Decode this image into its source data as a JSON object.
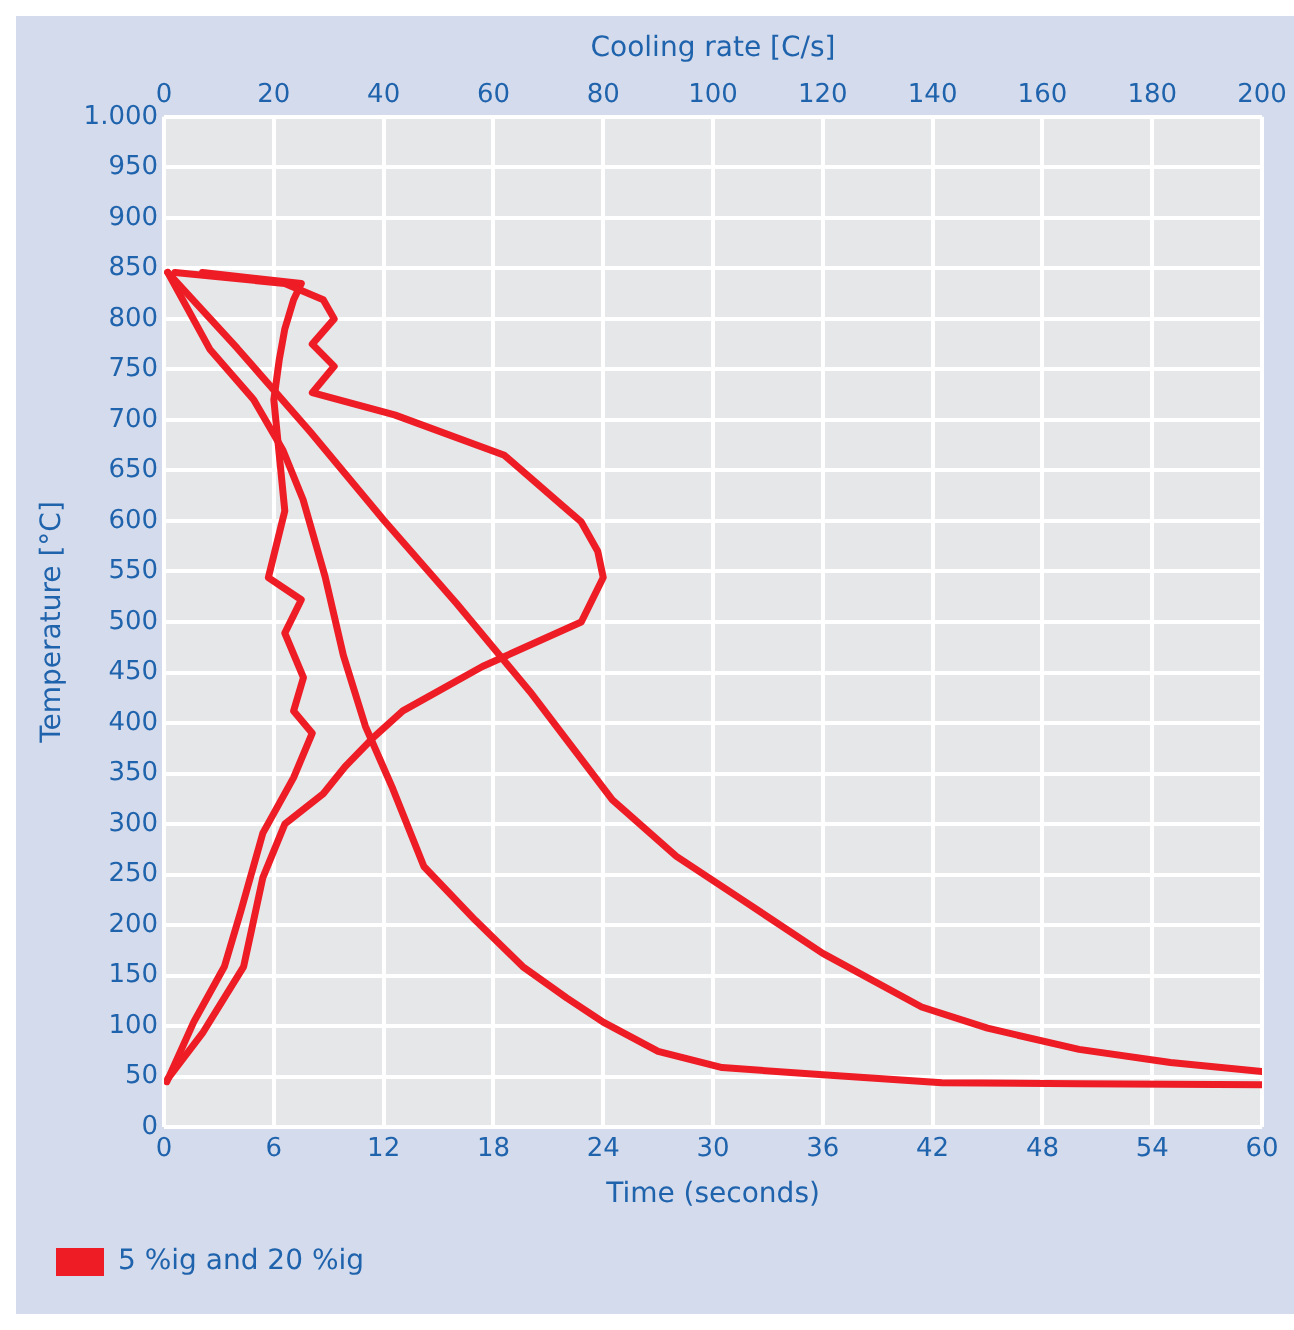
{
  "chart_data": {
    "type": "line",
    "xlabel": "Time (seconds)",
    "x2label": "Cooling rate [C/s]",
    "ylabel": "Temperature [°C]",
    "xlim": [
      0,
      60
    ],
    "xticks": [
      0,
      6,
      12,
      18,
      24,
      30,
      36,
      42,
      48,
      54,
      60
    ],
    "x2lim": [
      0,
      200
    ],
    "x2ticks": [
      0,
      20,
      40,
      60,
      80,
      100,
      120,
      140,
      160,
      180,
      200
    ],
    "ylim": [
      0,
      1000
    ],
    "yticks": [
      0,
      50,
      100,
      150,
      200,
      250,
      300,
      350,
      400,
      450,
      500,
      550,
      600,
      650,
      700,
      750,
      800,
      850,
      900,
      950,
      {
        "value": 1000,
        "label": "1.000"
      }
    ],
    "grid": true,
    "legend": "bottom left",
    "marker": "none",
    "line_style": "solid",
    "series": [
      {
        "name": "5 %ig and 20 %ig",
        "color": "#ee1c25",
        "x": [
          0.2,
          4,
          8,
          12,
          16,
          20,
          24.5,
          28,
          31.6,
          36,
          41.4,
          45,
          50,
          55,
          60
        ],
        "values": [
          846,
          771,
          688,
          601,
          518,
          431,
          324,
          268,
          225,
          172,
          119,
          98,
          77,
          64,
          55
        ]
      },
      {
        "color": "#ee1c25",
        "x": [
          0.2,
          2.5,
          4.9,
          6.5,
          7.6,
          8.8,
          9.8,
          11,
          12.5,
          14.2,
          17,
          19.6,
          22,
          24,
          27,
          30.5,
          36,
          42.5,
          50,
          60
        ],
        "values": [
          846,
          770,
          720,
          670,
          621,
          545,
          467,
          397,
          335,
          258,
          205,
          159,
          128,
          104,
          75,
          59,
          52,
          44,
          43,
          42
        ]
      },
      {
        "axis": "x2",
        "color": "#ee1c25",
        "x": [
          0.7,
          7,
          14.5,
          18,
          22,
          29,
          33,
          38,
          43.5,
          58,
          76,
          80,
          79,
          76,
          62,
          42,
          27,
          31,
          27,
          31,
          29,
          22,
          2
        ],
        "values": [
          48,
          93,
          159,
          247,
          300,
          330,
          357,
          385,
          412,
          456,
          500,
          544,
          570,
          599,
          665,
          705,
          727,
          753,
          775,
          800,
          819,
          835,
          846
        ]
      },
      {
        "axis": "x2",
        "color": "#ee1c25",
        "x": [
          0.5,
          5.4,
          11,
          14,
          18,
          23.6,
          27,
          23.6,
          25.4,
          22,
          25,
          19,
          22,
          21,
          20,
          21,
          22,
          23.6,
          25,
          7
        ],
        "values": [
          45,
          104,
          159,
          214,
          291,
          346,
          390,
          412,
          445,
          489,
          522,
          544,
          610,
          665,
          720,
          760,
          790,
          819,
          835,
          846
        ]
      }
    ]
  }
}
